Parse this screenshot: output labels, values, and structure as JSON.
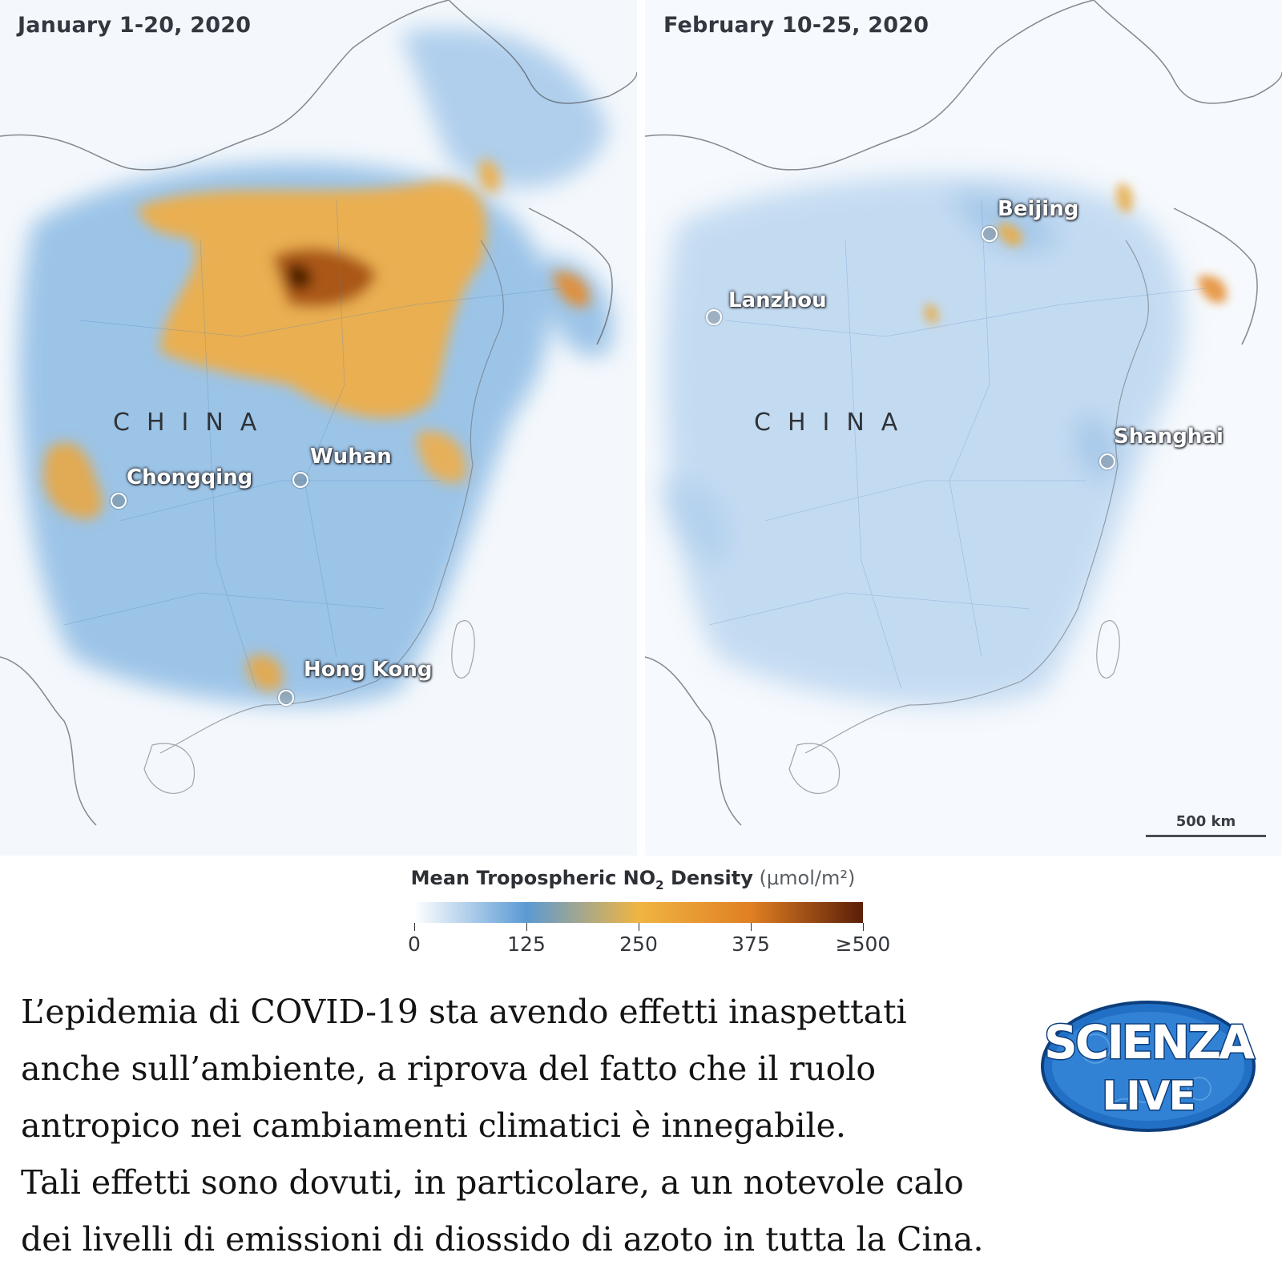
{
  "maps": [
    {
      "date_label": "January 1-20, 2020",
      "country_label": "CHINA",
      "cities": [
        "Wuhan",
        "Chongqing",
        "Hong Kong"
      ]
    },
    {
      "date_label": "February 10-25, 2020",
      "country_label": "CHINA",
      "cities": [
        "Beijing",
        "Lanzhou",
        "Shanghai"
      ]
    }
  ],
  "scale_bar_label": "500 km",
  "legend": {
    "title_main": "Mean Tropospheric NO",
    "title_sub": "2",
    "title_rest": " Density",
    "unit": "(μmol/m²)",
    "ticks": [
      "0",
      "125",
      "250",
      "375",
      "≥500"
    ],
    "colors": [
      "#ffffff",
      "#5b9ad4",
      "#f0b542",
      "#e07f22",
      "#5a1e08"
    ]
  },
  "caption": [
    "L’epidemia di COVID-19 sta avendo effetti inaspettati",
    "anche sull’ambiente, a riprova del fatto che il ruolo",
    "antropico nei cambiamenti climatici è innegabile.",
    "Tali effetti sono dovuti, in particolare, a un notevole calo",
    "dei livelli di emissioni di diossido di azoto in tutta la Cina."
  ],
  "logo": {
    "text_top": "SCIENZA",
    "text_bottom": "LIVE"
  }
}
